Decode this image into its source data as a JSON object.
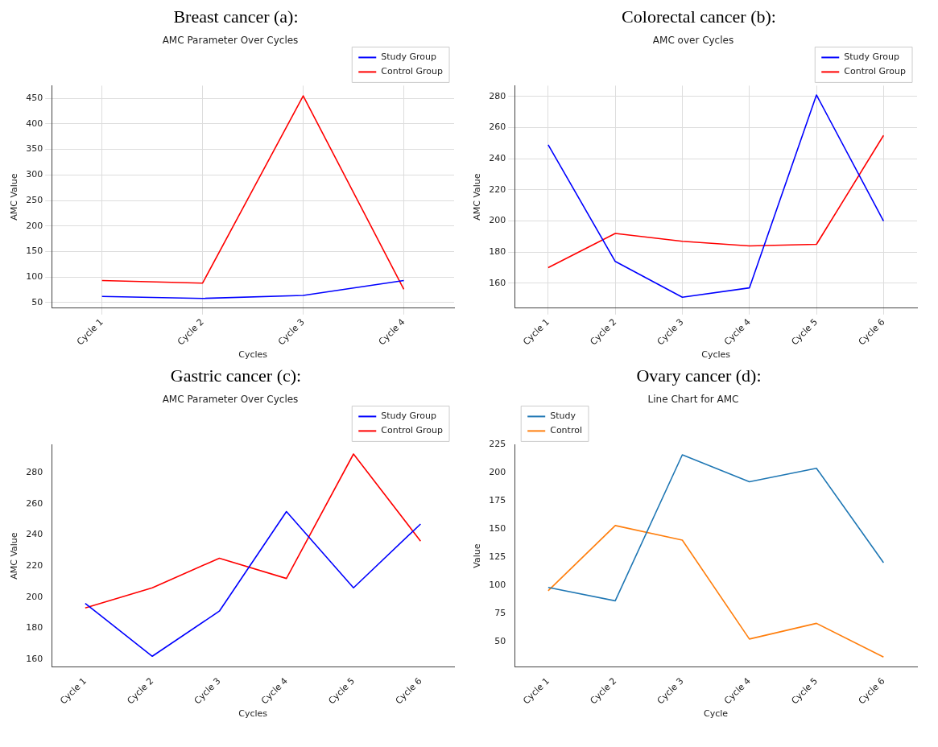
{
  "chart_data": [
    {
      "type": "line",
      "title": "Breast cancer (a):",
      "subtitle": "AMC Parameter Over Cycles",
      "xlabel": "Cycles",
      "ylabel": "AMC Value",
      "categories": [
        "Cycle 1",
        "Cycle 2",
        "Cycle 3",
        "Cycle 4"
      ],
      "series": [
        {
          "name": "Study Group",
          "color": "#0000ff",
          "values": [
            62,
            58,
            64,
            93
          ]
        },
        {
          "name": "Control Group",
          "color": "#ff0000",
          "values": [
            93,
            88,
            455,
            76
          ]
        }
      ],
      "ylim": [
        39,
        475
      ],
      "yticks": [
        50,
        100,
        150,
        200,
        250,
        300,
        350,
        400,
        450
      ],
      "grid": true,
      "legend": "top right",
      "marker": "none"
    },
    {
      "type": "line",
      "title": "Colorectal cancer (b):",
      "subtitle": "AMC over Cycles",
      "xlabel": "Cycles",
      "ylabel": "AMC Value",
      "categories": [
        "Cycle 1",
        "Cycle 2",
        "Cycle 3",
        "Cycle 4",
        "Cycle 5",
        "Cycle 6"
      ],
      "series": [
        {
          "name": "Study Group",
          "color": "#0000ff",
          "values": [
            249,
            174,
            151,
            157,
            281,
            200
          ]
        },
        {
          "name": "Control Group",
          "color": "#ff0000",
          "values": [
            170,
            192,
            187,
            184,
            185,
            255
          ]
        }
      ],
      "ylim": [
        144,
        287
      ],
      "yticks": [
        160,
        180,
        200,
        220,
        240,
        260,
        280
      ],
      "grid": true,
      "legend": "top right",
      "marker": "none"
    },
    {
      "type": "line",
      "title": "Gastric cancer (c):",
      "subtitle": "AMC Parameter Over Cycles",
      "xlabel": "Cycles",
      "ylabel": "AMC Value",
      "categories": [
        "Cycle 1",
        "Cycle 2",
        "Cycle 3",
        "Cycle 4",
        "Cycle 5",
        "Cycle 6"
      ],
      "series": [
        {
          "name": "Study Group",
          "color": "#0000ff",
          "values": [
            196,
            162,
            191,
            255,
            206,
            247
          ]
        },
        {
          "name": "Control Group",
          "color": "#ff0000",
          "values": [
            193,
            206,
            225,
            212,
            292,
            236
          ]
        }
      ],
      "ylim": [
        155,
        298
      ],
      "yticks": [
        160,
        180,
        200,
        220,
        240,
        260,
        280
      ],
      "legend": "top right",
      "marker": "none"
    },
    {
      "type": "line",
      "title": "Ovary cancer (d):",
      "subtitle": "Line Chart for AMC",
      "xlabel": "Cycle",
      "ylabel": "Value",
      "categories": [
        "Cycle 1",
        "Cycle 2",
        "Cycle 3",
        "Cycle 4",
        "Cycle 5",
        "Cycle 6"
      ],
      "series": [
        {
          "name": "Study",
          "color": "#1f77b4",
          "values": [
            98,
            86,
            216,
            192,
            204,
            120
          ]
        },
        {
          "name": "Control",
          "color": "#ff7f0e",
          "values": [
            95,
            153,
            140,
            52,
            66,
            36
          ]
        }
      ],
      "ylim": [
        27,
        225
      ],
      "yticks": [
        50,
        75,
        100,
        125,
        150,
        175,
        200,
        225
      ],
      "legend": "top left",
      "marker": "none"
    }
  ]
}
